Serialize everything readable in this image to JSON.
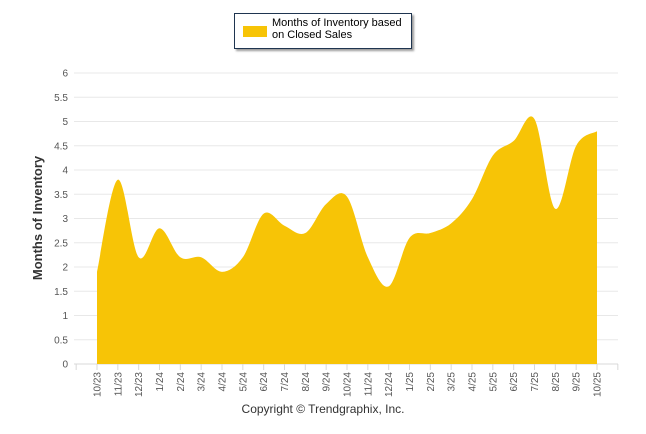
{
  "legend": {
    "label": "Months of Inventory based on Closed Sales",
    "color": "#f7c406"
  },
  "footer": {
    "copyright": "Copyright © Trendgraphix, Inc."
  },
  "chart_data": {
    "type": "area",
    "title": "",
    "xlabel": "",
    "ylabel": "Months of Inventory",
    "ylim": [
      0,
      6
    ],
    "yticks": [
      "0",
      "0.5",
      "1",
      "1.5",
      "2",
      "2.5",
      "3",
      "3.5",
      "4",
      "4.5",
      "5",
      "5.5",
      "6"
    ],
    "grid": true,
    "legend_position": "top-center",
    "categories": [
      "10/23",
      "11/23",
      "12/23",
      "1/24",
      "2/24",
      "3/24",
      "4/24",
      "5/24",
      "6/24",
      "7/24",
      "8/24",
      "9/24",
      "10/24",
      "11/24",
      "12/24",
      "1/25",
      "2/25",
      "3/25",
      "4/25",
      "5/25",
      "6/25",
      "7/25",
      "8/25",
      "9/25",
      "10/25"
    ],
    "series": [
      {
        "name": "Months of Inventory based on Closed Sales",
        "color": "#f7c406",
        "values": [
          1.9,
          3.8,
          2.2,
          2.8,
          2.2,
          2.2,
          1.9,
          2.2,
          3.1,
          2.85,
          2.7,
          3.3,
          3.45,
          2.2,
          1.6,
          2.6,
          2.7,
          2.9,
          3.4,
          4.3,
          4.6,
          5.05,
          3.2,
          4.5,
          4.8
        ]
      }
    ]
  }
}
